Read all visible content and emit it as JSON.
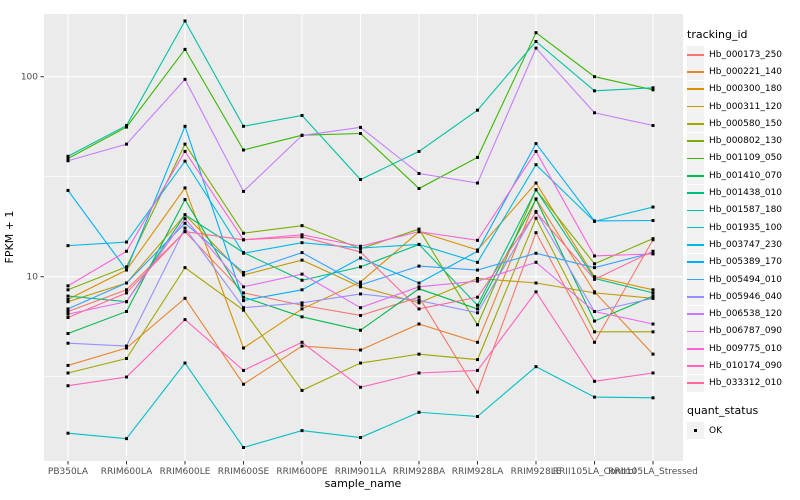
{
  "legend": {
    "tracking_title": "tracking_id",
    "quant_title": "quant_status",
    "quant_ok_label": "OK"
  },
  "chart_data": {
    "type": "line",
    "title": "",
    "xlabel": "sample_name",
    "ylabel": "FPKM + 1",
    "y_scale": "log10",
    "ylim": [
      1.2,
      210
    ],
    "y_ticks": [
      10,
      100
    ],
    "y_tick_labels": [
      "10",
      "100"
    ],
    "y_minor_gridlines": [
      3.162,
      31.62
    ],
    "grid": true,
    "legend_position": "right",
    "panel_background": "#EBEBEB",
    "gridline_color": "#FFFFFF",
    "marker": "black-square",
    "marker_legend_status": "OK",
    "categories": [
      "PB350LA",
      "RRIM600LA",
      "RRIM600LE",
      "RRIM600SE",
      "RRIM600PE",
      "RRIM901LA",
      "RRIM928BA",
      "RRIM928LA",
      "RRIM928LE",
      "RRII105LA_Control",
      "RRII105LA_Stressed"
    ],
    "series": [
      {
        "name": "Hb_000173_250",
        "color": "#F8766D",
        "values": [
          6.7,
          8.6,
          16.8,
          8.3,
          7.2,
          6.4,
          7.9,
          2.65,
          16.6,
          4.7,
          15.3
        ]
      },
      {
        "name": "Hb_000221_140",
        "color": "#EA8331",
        "values": [
          3.6,
          4.4,
          7.8,
          2.9,
          4.5,
          4.3,
          5.8,
          4.7,
          24.5,
          8.4,
          4.1
        ]
      },
      {
        "name": "Hb_000300_180",
        "color": "#D89000",
        "values": [
          7.7,
          10.8,
          27.8,
          4.4,
          6.9,
          9.4,
          16.8,
          13.6,
          29.4,
          10.0,
          8.6
        ]
      },
      {
        "name": "Hb_000311_120",
        "color": "#C09B00",
        "values": [
          7.5,
          9.3,
          20.4,
          10.2,
          12.1,
          8.9,
          7.4,
          9.8,
          9.3,
          8.3,
          7.8
        ]
      },
      {
        "name": "Hb_000580_150",
        "color": "#A3A500",
        "values": [
          3.3,
          3.9,
          11.1,
          6.8,
          2.7,
          3.7,
          4.1,
          3.85,
          19.6,
          5.3,
          5.3
        ]
      },
      {
        "name": "Hb_000802_130",
        "color": "#7CAE00",
        "values": [
          8.6,
          11.2,
          46.0,
          16.5,
          18.0,
          13.8,
          17.3,
          5.75,
          27.2,
          11.6,
          15.5
        ]
      },
      {
        "name": "Hb_001109_050",
        "color": "#39B600",
        "values": [
          39,
          56,
          137,
          43,
          51,
          52,
          27.6,
          39.5,
          166,
          100,
          86
        ]
      },
      {
        "name": "Hb_001410_070",
        "color": "#00BB4E",
        "values": [
          5.2,
          6.7,
          24.3,
          7.9,
          6.3,
          5.4,
          8.7,
          6.9,
          24.4,
          6.0,
          8.0
        ]
      },
      {
        "name": "Hb_001438_010",
        "color": "#00BF7D",
        "values": [
          8.0,
          7.5,
          20.4,
          13.2,
          9.6,
          11.2,
          14.5,
          7.2,
          27.2,
          9.8,
          8.3
        ]
      },
      {
        "name": "Hb_001587_180",
        "color": "#00C1A3",
        "values": [
          40,
          57,
          190,
          56.5,
          64,
          30.6,
          42.3,
          68,
          150,
          85,
          88
        ]
      },
      {
        "name": "Hb_001935_100",
        "color": "#00BFC4",
        "values": [
          1.65,
          1.55,
          3.7,
          1.4,
          1.7,
          1.57,
          2.1,
          2.0,
          3.55,
          2.5,
          2.48
        ]
      },
      {
        "name": "Hb_003747_230",
        "color": "#00BAE0",
        "values": [
          14.3,
          14.9,
          37.8,
          13.1,
          14.8,
          13.9,
          14.5,
          11.8,
          36.3,
          18.9,
          22.3
        ]
      },
      {
        "name": "Hb_005389_170",
        "color": "#00B0F6",
        "values": [
          27,
          10.8,
          56.5,
          7.6,
          8.6,
          12.4,
          9.3,
          13.4,
          46.3,
          19.0,
          19.1
        ]
      },
      {
        "name": "Hb_005494_010",
        "color": "#35A2FF",
        "values": [
          6.9,
          9.3,
          18.5,
          10.5,
          13.2,
          9.1,
          11.3,
          10.8,
          13.1,
          11.1,
          13.2
        ]
      },
      {
        "name": "Hb_005946_040",
        "color": "#9590FF",
        "values": [
          4.65,
          4.5,
          17.5,
          7.0,
          7.4,
          8.2,
          7.6,
          6.6,
          21.2,
          6.7,
          7.8
        ]
      },
      {
        "name": "Hb_006538_120",
        "color": "#C77CFF",
        "values": [
          38,
          46,
          97,
          26.7,
          50.8,
          55.8,
          32.8,
          29.4,
          139,
          66,
          57
        ]
      },
      {
        "name": "Hb_006787_090",
        "color": "#E76BF3",
        "values": [
          6.5,
          7.5,
          19.5,
          8.9,
          10.3,
          7.0,
          8.9,
          9.5,
          11.8,
          6.7,
          5.8
        ]
      },
      {
        "name": "Hb_009775_010",
        "color": "#FA62DB",
        "values": [
          9.0,
          13.4,
          42.3,
          15.3,
          16.2,
          14.2,
          16.8,
          15.2,
          42.3,
          12.7,
          13.0
        ]
      },
      {
        "name": "Hb_010174_090",
        "color": "#FF62BC",
        "values": [
          2.85,
          3.15,
          6.1,
          3.4,
          4.7,
          2.8,
          3.3,
          3.4,
          8.4,
          3.0,
          3.3
        ]
      },
      {
        "name": "Hb_033312_010",
        "color": "#FF6A98",
        "values": [
          6.25,
          8.3,
          16.8,
          15.3,
          15.8,
          13.3,
          6.9,
          7.9,
          21.0,
          9.7,
          13.4
        ]
      }
    ]
  }
}
